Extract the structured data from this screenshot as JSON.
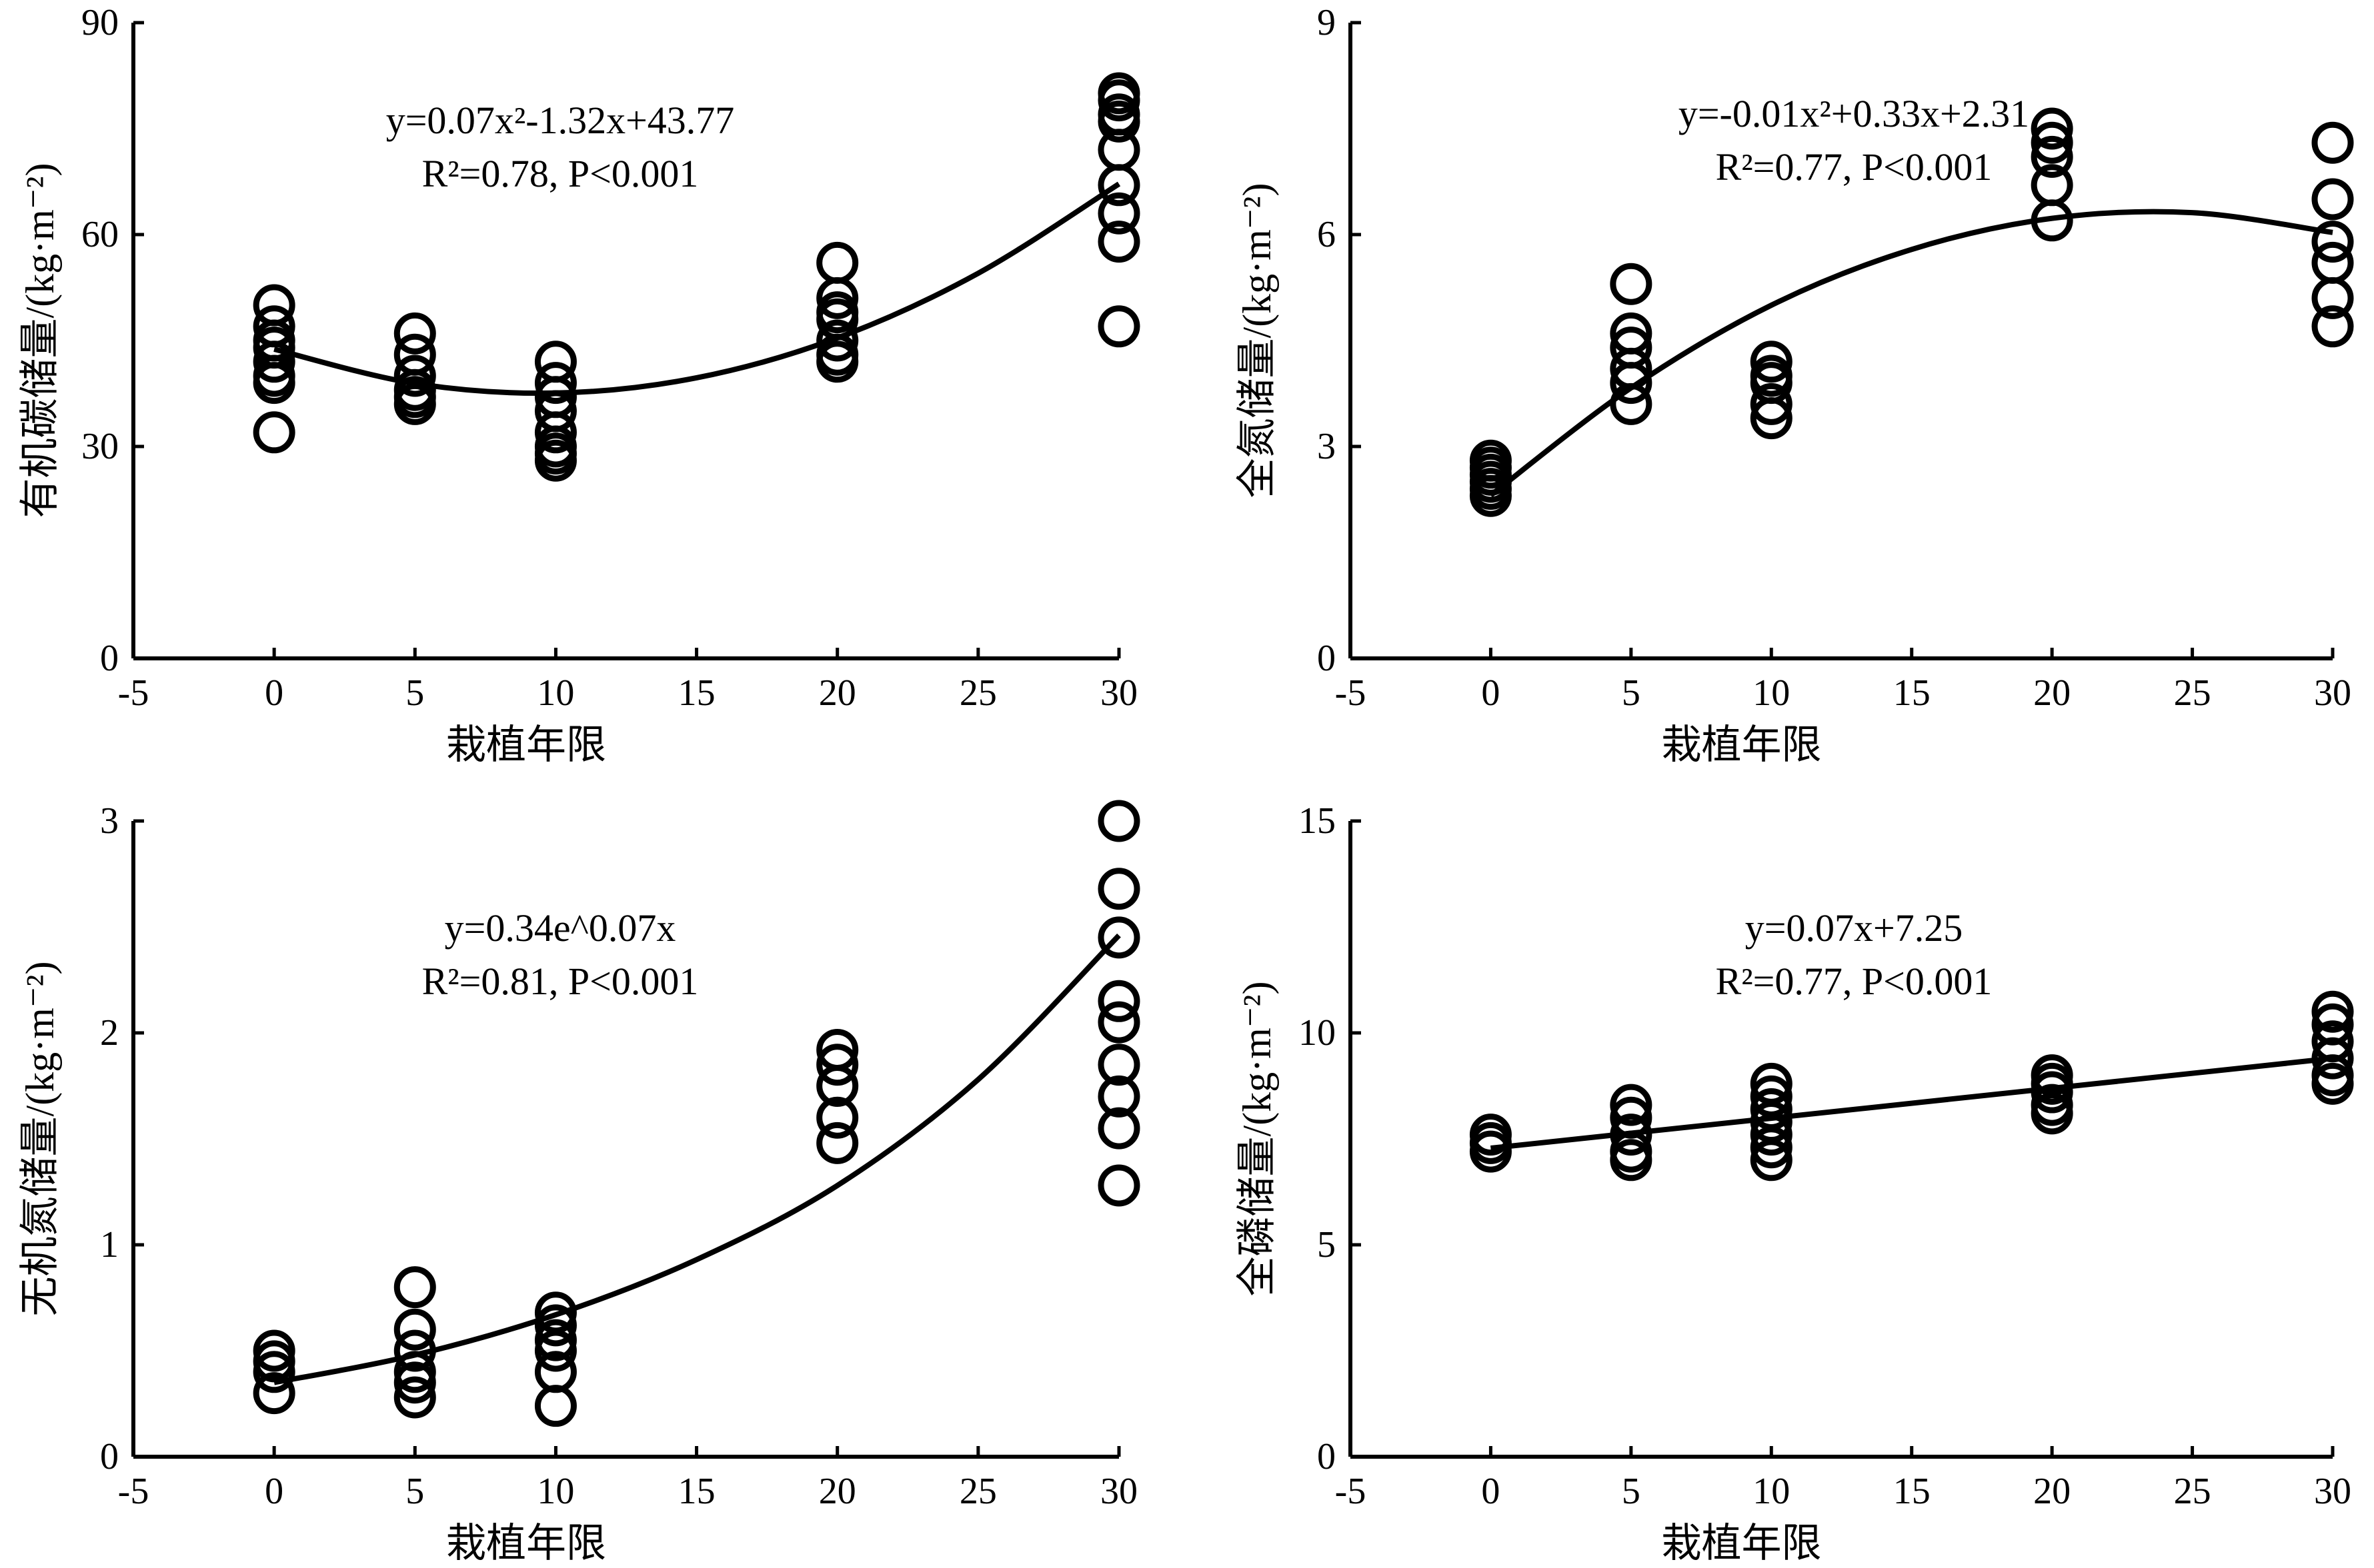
{
  "chart_data": [
    {
      "type": "scatter",
      "ylabel": "有机碳储量/(kg·m⁻²)",
      "xlabel": "栽植年限",
      "xlim": [
        -5,
        30
      ],
      "xticks": [
        -5,
        0,
        5,
        10,
        15,
        20,
        25,
        30
      ],
      "ylim": [
        0,
        90
      ],
      "yticks": [
        0,
        30,
        60,
        90
      ],
      "equation": "y=0.07x²-1.32x+43.77",
      "stats": "R²=0.78, P<0.001",
      "points": [
        [
          0,
          50
        ],
        [
          0,
          47
        ],
        [
          0,
          45
        ],
        [
          0,
          44
        ],
        [
          0,
          42
        ],
        [
          0,
          40
        ],
        [
          0,
          39
        ],
        [
          0,
          32
        ],
        [
          5,
          46
        ],
        [
          5,
          43
        ],
        [
          5,
          40
        ],
        [
          5,
          38
        ],
        [
          5,
          37
        ],
        [
          5,
          36
        ],
        [
          10,
          42
        ],
        [
          10,
          39
        ],
        [
          10,
          37
        ],
        [
          10,
          35
        ],
        [
          10,
          32
        ],
        [
          10,
          30
        ],
        [
          10,
          29
        ],
        [
          10,
          28
        ],
        [
          20,
          56
        ],
        [
          20,
          51
        ],
        [
          20,
          49
        ],
        [
          20,
          48
        ],
        [
          20,
          45
        ],
        [
          20,
          43
        ],
        [
          20,
          42
        ],
        [
          30,
          80
        ],
        [
          30,
          79
        ],
        [
          30,
          77
        ],
        [
          30,
          76
        ],
        [
          30,
          72
        ],
        [
          30,
          67
        ],
        [
          30,
          63
        ],
        [
          30,
          59
        ],
        [
          30,
          47
        ]
      ],
      "fit_curve": [
        [
          0,
          43.77
        ],
        [
          5,
          38.92
        ],
        [
          10,
          37.57
        ],
        [
          15,
          39.72
        ],
        [
          20,
          45.37
        ],
        [
          25,
          54.52
        ],
        [
          30,
          67.17
        ]
      ]
    },
    {
      "type": "scatter",
      "ylabel": "全氮储量/(kg·m⁻²)",
      "xlabel": "栽植年限",
      "xlim": [
        -5,
        30
      ],
      "xticks": [
        -5,
        0,
        5,
        10,
        15,
        20,
        25,
        30
      ],
      "ylim": [
        0,
        9
      ],
      "yticks": [
        0,
        3,
        6,
        9
      ],
      "equation": "y=-0.01x²+0.33x+2.31",
      "stats": "R²=0.77, P<0.001",
      "points": [
        [
          0,
          2.8
        ],
        [
          0,
          2.7
        ],
        [
          0,
          2.6
        ],
        [
          0,
          2.5
        ],
        [
          0,
          2.4
        ],
        [
          0,
          2.3
        ],
        [
          5,
          5.3
        ],
        [
          5,
          4.6
        ],
        [
          5,
          4.4
        ],
        [
          5,
          4.1
        ],
        [
          5,
          3.9
        ],
        [
          5,
          3.6
        ],
        [
          10,
          4.2
        ],
        [
          10,
          4.0
        ],
        [
          10,
          3.9
        ],
        [
          10,
          3.6
        ],
        [
          10,
          3.4
        ],
        [
          20,
          7.5
        ],
        [
          20,
          7.3
        ],
        [
          20,
          7.1
        ],
        [
          20,
          6.7
        ],
        [
          20,
          6.2
        ],
        [
          30,
          7.3
        ],
        [
          30,
          6.5
        ],
        [
          30,
          5.9
        ],
        [
          30,
          5.6
        ],
        [
          30,
          5.1
        ],
        [
          30,
          4.7
        ]
      ],
      "fit_curve": [
        [
          0,
          2.31
        ],
        [
          5,
          3.83
        ],
        [
          10,
          5.0
        ],
        [
          15,
          5.79
        ],
        [
          20,
          6.23
        ],
        [
          25,
          6.31
        ],
        [
          30,
          6.03
        ]
      ]
    },
    {
      "type": "scatter",
      "ylabel": "无机氮储量/(kg·m⁻²)",
      "xlabel": "栽植年限",
      "xlim": [
        -5,
        30
      ],
      "xticks": [
        -5,
        0,
        5,
        10,
        15,
        20,
        25,
        30
      ],
      "ylim": [
        0,
        3
      ],
      "yticks": [
        0,
        1,
        2,
        3
      ],
      "equation": "y=0.34e^0.07x",
      "stats": "R²=0.81, P<0.001",
      "points": [
        [
          0,
          0.5
        ],
        [
          0,
          0.45
        ],
        [
          0,
          0.4
        ],
        [
          0,
          0.3
        ],
        [
          5,
          0.8
        ],
        [
          5,
          0.6
        ],
        [
          5,
          0.5
        ],
        [
          5,
          0.4
        ],
        [
          5,
          0.35
        ],
        [
          5,
          0.28
        ],
        [
          10,
          0.68
        ],
        [
          10,
          0.62
        ],
        [
          10,
          0.55
        ],
        [
          10,
          0.5
        ],
        [
          10,
          0.4
        ],
        [
          10,
          0.24
        ],
        [
          20,
          1.92
        ],
        [
          20,
          1.85
        ],
        [
          20,
          1.75
        ],
        [
          20,
          1.6
        ],
        [
          20,
          1.48
        ],
        [
          30,
          3.0
        ],
        [
          30,
          2.68
        ],
        [
          30,
          2.45
        ],
        [
          30,
          2.15
        ],
        [
          30,
          2.05
        ],
        [
          30,
          1.85
        ],
        [
          30,
          1.7
        ],
        [
          30,
          1.55
        ],
        [
          30,
          1.28
        ]
      ],
      "fit_curve": [
        [
          0,
          0.35
        ],
        [
          5,
          0.48
        ],
        [
          10,
          0.67
        ],
        [
          15,
          0.93
        ],
        [
          20,
          1.28
        ],
        [
          25,
          1.78
        ],
        [
          30,
          2.46
        ]
      ]
    },
    {
      "type": "scatter",
      "ylabel": "全磷储量/(kg·m⁻²)",
      "xlabel": "栽植年限",
      "xlim": [
        -5,
        30
      ],
      "xticks": [
        -5,
        0,
        5,
        10,
        15,
        20,
        25,
        30
      ],
      "ylim": [
        0,
        15
      ],
      "yticks": [
        0,
        5,
        10,
        15
      ],
      "equation": "y=0.07x+7.25",
      "stats": "R²=0.77, P<0.001",
      "points": [
        [
          0,
          7.6
        ],
        [
          0,
          7.4
        ],
        [
          0,
          7.2
        ],
        [
          5,
          8.3
        ],
        [
          5,
          8.0
        ],
        [
          5,
          7.6
        ],
        [
          5,
          7.2
        ],
        [
          5,
          7.0
        ],
        [
          10,
          8.8
        ],
        [
          10,
          8.5
        ],
        [
          10,
          8.2
        ],
        [
          10,
          7.9
        ],
        [
          10,
          7.6
        ],
        [
          10,
          7.3
        ],
        [
          10,
          7.0
        ],
        [
          20,
          9.0
        ],
        [
          20,
          8.8
        ],
        [
          20,
          8.6
        ],
        [
          20,
          8.3
        ],
        [
          20,
          8.1
        ],
        [
          30,
          10.5
        ],
        [
          30,
          10.2
        ],
        [
          30,
          9.8
        ],
        [
          30,
          9.4
        ],
        [
          30,
          9.0
        ],
        [
          30,
          8.8
        ]
      ],
      "fit_curve": [
        [
          0,
          7.28
        ],
        [
          30,
          9.4
        ]
      ]
    }
  ]
}
